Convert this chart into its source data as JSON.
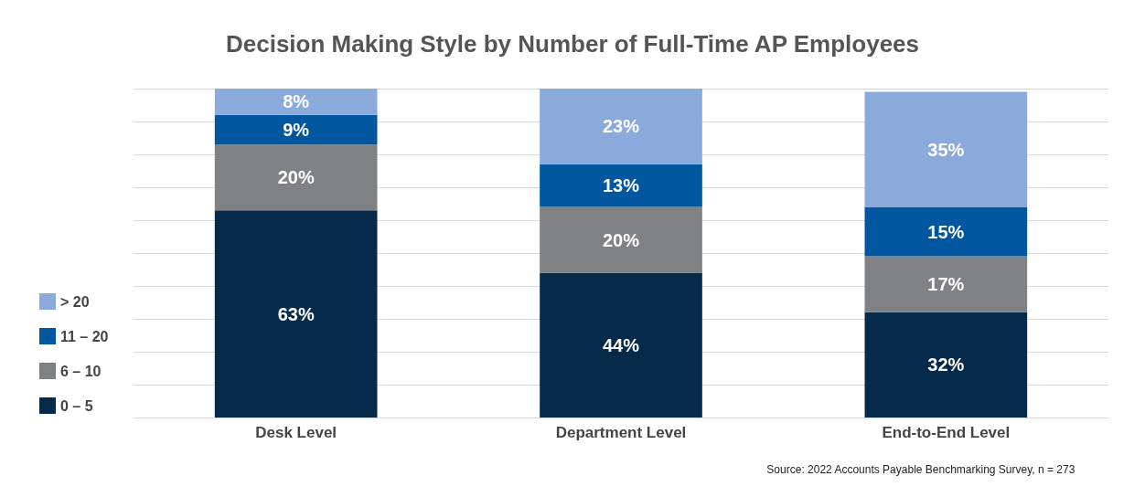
{
  "chart_data": {
    "type": "bar",
    "stacked": true,
    "title": "Decision Making Style by Number of Full-Time AP Employees",
    "categories": [
      "Desk Level",
      "Department Level",
      "End-to-End Level"
    ],
    "series": [
      {
        "name": "0 – 5",
        "color": "#062a4a",
        "values": [
          63,
          44,
          32
        ],
        "value_labels": [
          "63%",
          "44%",
          "32%"
        ]
      },
      {
        "name": "6 – 10",
        "color": "#808184",
        "values": [
          20,
          20,
          17
        ],
        "value_labels": [
          "20%",
          "20%",
          "17%"
        ]
      },
      {
        "name": "11 – 20",
        "color": "#0057a0",
        "values": [
          9,
          13,
          15
        ],
        "value_labels": [
          "9%",
          "13%",
          "15%"
        ]
      },
      {
        "name": "> 20",
        "color": "#89aadb",
        "values": [
          8,
          23,
          35
        ],
        "value_labels": [
          "8%",
          "23%",
          "35%"
        ]
      }
    ],
    "tick_labels": "x",
    "grid": "y",
    "legend": "left",
    "annotations": [
      "Source: 2022 Accounts Payable Benchmarking Survey, n = 273"
    ]
  }
}
